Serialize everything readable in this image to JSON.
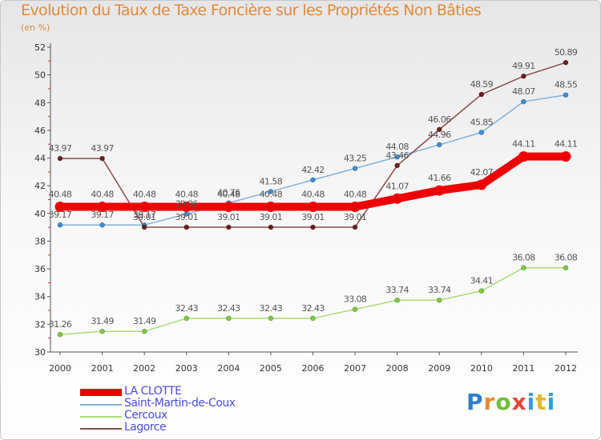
{
  "chart_data": {
    "type": "line",
    "title": "Evolution du Taux de Taxe Foncière sur les Propriétés Non Bâties",
    "subtitle": "(en %)",
    "x": [
      "2000",
      "2001",
      "2002",
      "2003",
      "2004",
      "2005",
      "2006",
      "2007",
      "2008",
      "2009",
      "2010",
      "2011",
      "2012"
    ],
    "ylim": [
      30,
      52
    ],
    "yticks": [
      30,
      32,
      34,
      36,
      38,
      40,
      42,
      44,
      46,
      48,
      50,
      52
    ],
    "grid": false,
    "legend_position": "bottom-left",
    "series": [
      {
        "name": "LA CLOTTE",
        "color": "#ee0000",
        "values": [
          40.48,
          40.48,
          40.48,
          40.48,
          40.48,
          40.48,
          40.48,
          40.48,
          41.07,
          41.66,
          42.07,
          44.11,
          44.11
        ],
        "labels": [
          "40.48",
          "40.48",
          "40.48",
          "40.48",
          "40.48",
          "40.48",
          "40.48",
          "40.48",
          "41.07",
          "41.66",
          "42.07",
          "44.11",
          "44.11"
        ]
      },
      {
        "name": "Saint-Martin-de-Coux",
        "color": "#7fb3dc",
        "marker": "#3b8ed3",
        "values": [
          39.17,
          39.17,
          39.17,
          39.96,
          40.76,
          41.58,
          42.42,
          43.25,
          44.08,
          44.96,
          45.85,
          48.07,
          48.55
        ],
        "labels": [
          "39.17",
          "39.17",
          "39.17",
          "39.96",
          "40.76",
          "41.58",
          "42.42",
          "43.25",
          "44.08",
          "44.96",
          "45.85",
          "48.07",
          "48.55"
        ]
      },
      {
        "name": "Cercoux",
        "color": "#a8dc78",
        "marker": "#7acb3e",
        "values": [
          31.26,
          31.49,
          31.49,
          32.43,
          32.43,
          32.43,
          32.43,
          33.08,
          33.74,
          33.74,
          34.41,
          36.08,
          36.08
        ],
        "labels": [
          "31.26",
          "31.49",
          "31.49",
          "32.43",
          "32.43",
          "32.43",
          "32.43",
          "33.08",
          "33.74",
          "33.74",
          "34.41",
          "36.08",
          "36.08"
        ]
      },
      {
        "name": "Lagorce",
        "color": "#8c4a4a",
        "marker": "#6a1e1e",
        "values": [
          43.97,
          43.97,
          39.01,
          39.01,
          39.01,
          39.01,
          39.01,
          39.01,
          43.46,
          46.06,
          48.59,
          49.91,
          50.89
        ],
        "labels": [
          "43.97",
          "43.97",
          "39.01",
          "39.01",
          "39.01",
          "39.01",
          "39.01",
          "39.01",
          "43.46",
          "46.06",
          "48.59",
          "49.91",
          "50.89"
        ]
      }
    ]
  },
  "logo_text": "Proxiti"
}
